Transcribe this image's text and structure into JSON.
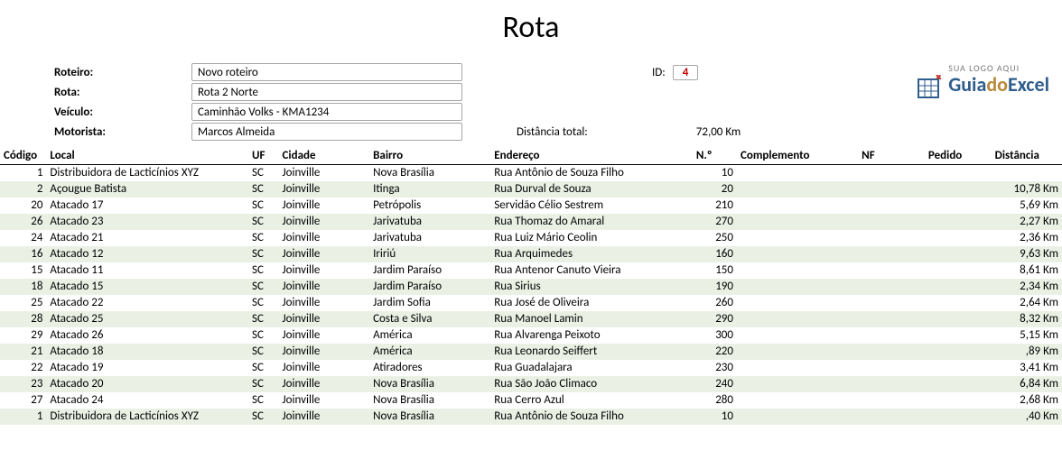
{
  "title": "Rota",
  "header": {
    "roteiro_label": "Roteiro:",
    "roteiro": "Novo roteiro",
    "rota_label": "Rota:",
    "rota": "Rota 2 Norte",
    "veiculo_label": "Veículo:",
    "veiculo": "Caminhão Volks - KMA1234",
    "motorista_label": "Motorista:",
    "motorista": "Marcos Almeida",
    "id_label": "ID:",
    "id": "4",
    "dist_total_label": "Distância total:",
    "dist_total": "72,00 Km"
  },
  "logo": {
    "small": "SUA LOGO AQUI",
    "g": "Guia",
    "d": "do",
    "e": "Excel"
  },
  "columns": [
    "Código",
    "Local",
    "UF",
    "Cidade",
    "Bairro",
    "Endereço",
    "N.º",
    "Complemento",
    "NF",
    "Pedido",
    "Distância"
  ],
  "colors": {
    "row_even": "#eaf1e4",
    "row_odd": "#ffffff",
    "id_color": "#c00000",
    "field_border": "#a6a6a6",
    "logo_blue": "#2f5d8c",
    "logo_gold": "#b88a3a",
    "logo_red": "#c23b2e"
  },
  "rows": [
    {
      "codigo": "1",
      "local": "Distribuidora de Lacticínios XYZ",
      "uf": "SC",
      "cidade": "Joinville",
      "bairro": "Nova Brasília",
      "end": "Rua Antônio de Souza Filho",
      "no": "10",
      "compl": "",
      "nf": "",
      "ped": "",
      "dist": ""
    },
    {
      "codigo": "2",
      "local": "Açougue Batista",
      "uf": "SC",
      "cidade": "Joinville",
      "bairro": "Itinga",
      "end": "Rua Durval de Souza",
      "no": "20",
      "compl": "",
      "nf": "",
      "ped": "",
      "dist": "10,78 Km"
    },
    {
      "codigo": "20",
      "local": "Atacado 17",
      "uf": "SC",
      "cidade": "Joinville",
      "bairro": "Petrópolis",
      "end": "Servidão Célio Sestrem",
      "no": "210",
      "compl": "",
      "nf": "",
      "ped": "",
      "dist": "5,69 Km"
    },
    {
      "codigo": "26",
      "local": "Atacado 23",
      "uf": "SC",
      "cidade": "Joinville",
      "bairro": "Jarivatuba",
      "end": "Rua Thomaz do Amaral",
      "no": "270",
      "compl": "",
      "nf": "",
      "ped": "",
      "dist": "2,27 Km"
    },
    {
      "codigo": "24",
      "local": "Atacado 21",
      "uf": "SC",
      "cidade": "Joinville",
      "bairro": "Jarivatuba",
      "end": "Rua Luiz Mário Ceolin",
      "no": "250",
      "compl": "",
      "nf": "",
      "ped": "",
      "dist": "2,36 Km"
    },
    {
      "codigo": "16",
      "local": "Atacado 12",
      "uf": "SC",
      "cidade": "Joinville",
      "bairro": "Iririú",
      "end": "Rua Arquimedes",
      "no": "160",
      "compl": "",
      "nf": "",
      "ped": "",
      "dist": "9,63 Km"
    },
    {
      "codigo": "15",
      "local": "Atacado 11",
      "uf": "SC",
      "cidade": "Joinville",
      "bairro": "Jardim Paraíso",
      "end": "Rua Antenor Canuto Vieira",
      "no": "150",
      "compl": "",
      "nf": "",
      "ped": "",
      "dist": "8,61 Km"
    },
    {
      "codigo": "18",
      "local": "Atacado 15",
      "uf": "SC",
      "cidade": "Joinville",
      "bairro": "Jardim Paraíso",
      "end": "Rua Sirius",
      "no": "190",
      "compl": "",
      "nf": "",
      "ped": "",
      "dist": "2,34 Km"
    },
    {
      "codigo": "25",
      "local": "Atacado 22",
      "uf": "SC",
      "cidade": "Joinville",
      "bairro": "Jardim Sofia",
      "end": "Rua José de Oliveira",
      "no": "260",
      "compl": "",
      "nf": "",
      "ped": "",
      "dist": "2,64 Km"
    },
    {
      "codigo": "28",
      "local": "Atacado 25",
      "uf": "SC",
      "cidade": "Joinville",
      "bairro": "Costa e Silva",
      "end": "Rua Manoel Lamin",
      "no": "290",
      "compl": "",
      "nf": "",
      "ped": "",
      "dist": "8,32 Km"
    },
    {
      "codigo": "29",
      "local": "Atacado 26",
      "uf": "SC",
      "cidade": "Joinville",
      "bairro": "América",
      "end": "Rua Alvarenga Peixoto",
      "no": "300",
      "compl": "",
      "nf": "",
      "ped": "",
      "dist": "5,15 Km"
    },
    {
      "codigo": "21",
      "local": "Atacado 18",
      "uf": "SC",
      "cidade": "Joinville",
      "bairro": "América",
      "end": "Rua Leonardo Seiffert",
      "no": "220",
      "compl": "",
      "nf": "",
      "ped": "",
      "dist": ",89 Km"
    },
    {
      "codigo": "22",
      "local": "Atacado 19",
      "uf": "SC",
      "cidade": "Joinville",
      "bairro": "Atiradores",
      "end": "Rua Guadalajara",
      "no": "230",
      "compl": "",
      "nf": "",
      "ped": "",
      "dist": "3,41 Km"
    },
    {
      "codigo": "23",
      "local": "Atacado 20",
      "uf": "SC",
      "cidade": "Joinville",
      "bairro": "Nova Brasília",
      "end": "Rua São João Climaco",
      "no": "240",
      "compl": "",
      "nf": "",
      "ped": "",
      "dist": "6,84 Km"
    },
    {
      "codigo": "27",
      "local": "Atacado 24",
      "uf": "SC",
      "cidade": "Joinville",
      "bairro": "Nova Brasília",
      "end": "Rua Cerro Azul",
      "no": "280",
      "compl": "",
      "nf": "",
      "ped": "",
      "dist": "2,68 Km"
    },
    {
      "codigo": "1",
      "local": "Distribuidora de Lacticínios XYZ",
      "uf": "SC",
      "cidade": "Joinville",
      "bairro": "Nova Brasília",
      "end": "Rua Antônio de Souza Filho",
      "no": "10",
      "compl": "",
      "nf": "",
      "ped": "",
      "dist": ",40 Km"
    }
  ]
}
